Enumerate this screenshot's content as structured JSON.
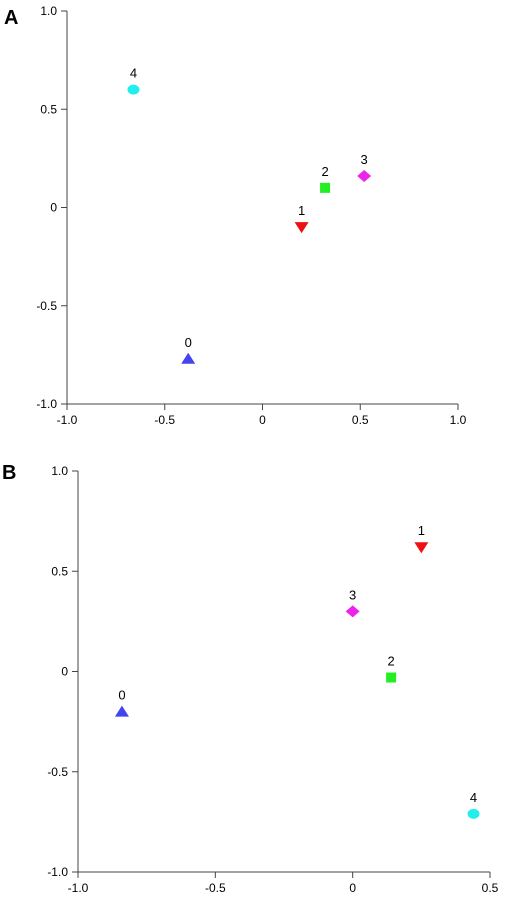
{
  "chart_data": [
    {
      "panel_label": "A",
      "type": "scatter",
      "title": "",
      "xlabel": "",
      "ylabel": "",
      "xlim": [
        -1.0,
        1.0
      ],
      "ylim": [
        -1.0,
        1.0
      ],
      "x_ticks": [
        "-1.0",
        "-0.5",
        "0",
        "0.5",
        "1.0"
      ],
      "y_ticks": [
        "1.0",
        "0.5",
        "0",
        "-0.5",
        "-1.0"
      ],
      "grid": false,
      "points": [
        {
          "label": "0",
          "x": -0.38,
          "y": -0.77,
          "marker": "triangle-up",
          "color": "#4444ee"
        },
        {
          "label": "1",
          "x": 0.2,
          "y": -0.1,
          "marker": "triangle-down",
          "color": "#ee1111"
        },
        {
          "label": "2",
          "x": 0.32,
          "y": 0.1,
          "marker": "square",
          "color": "#22ee22"
        },
        {
          "label": "3",
          "x": 0.52,
          "y": 0.16,
          "marker": "diamond",
          "color": "#ee22ee"
        },
        {
          "label": "4",
          "x": -0.66,
          "y": 0.6,
          "marker": "circle",
          "color": "#22eeee"
        }
      ]
    },
    {
      "panel_label": "B",
      "type": "scatter",
      "title": "",
      "xlabel": "",
      "ylabel": "",
      "xlim": [
        -1.0,
        0.5
      ],
      "ylim": [
        -1.0,
        1.0
      ],
      "x_ticks": [
        "-1.0",
        "-0.5",
        "0",
        "0.5"
      ],
      "y_ticks": [
        "1.0",
        "0.5",
        "0",
        "-0.5",
        "-1.0"
      ],
      "grid": false,
      "points": [
        {
          "label": "0",
          "x": -0.84,
          "y": -0.2,
          "marker": "triangle-up",
          "color": "#4444ee"
        },
        {
          "label": "1",
          "x": 0.25,
          "y": 0.62,
          "marker": "triangle-down",
          "color": "#ee1111"
        },
        {
          "label": "2",
          "x": 0.14,
          "y": -0.03,
          "marker": "square",
          "color": "#22ee22"
        },
        {
          "label": "3",
          "x": 0.0,
          "y": 0.3,
          "marker": "diamond",
          "color": "#ee22ee"
        },
        {
          "label": "4",
          "x": 0.44,
          "y": -0.71,
          "marker": "circle",
          "color": "#22eeee"
        }
      ]
    }
  ]
}
